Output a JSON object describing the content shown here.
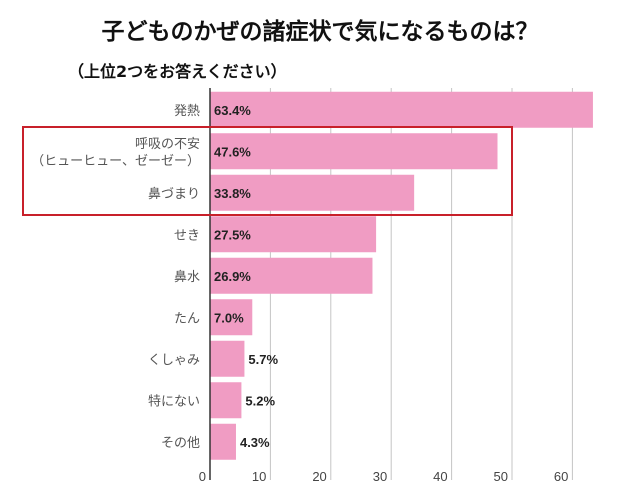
{
  "chart_data": {
    "type": "bar",
    "orientation": "horizontal",
    "title": "子どものかぜの諸症状で気になるものは？",
    "subtitle": "（上位2つをお答えください）",
    "categories": [
      "発熱",
      "呼吸の不安\n（ヒューヒュー、ゼーゼー）",
      "鼻づまり",
      "せき",
      "鼻水",
      "たん",
      "くしゃみ",
      "特にない",
      "その他"
    ],
    "values": [
      63.4,
      47.6,
      33.8,
      27.5,
      26.9,
      7.0,
      5.7,
      5.2,
      4.3
    ],
    "value_labels": [
      "63.4%",
      "47.6%",
      "33.8%",
      "27.5%",
      "26.9%",
      "7.0%",
      "5.7%",
      "5.2%",
      "4.3%"
    ],
    "xlim": [
      0,
      65
    ],
    "xticks": [
      0,
      10,
      20,
      30,
      40,
      50,
      60
    ],
    "grid": true,
    "highlighted": [
      "呼吸の不安\n（ヒューヒュー、ゼーゼー）",
      "鼻づまり"
    ],
    "colors": {
      "bar": "#f09cc3",
      "highlight_box": "#c8202a"
    }
  }
}
